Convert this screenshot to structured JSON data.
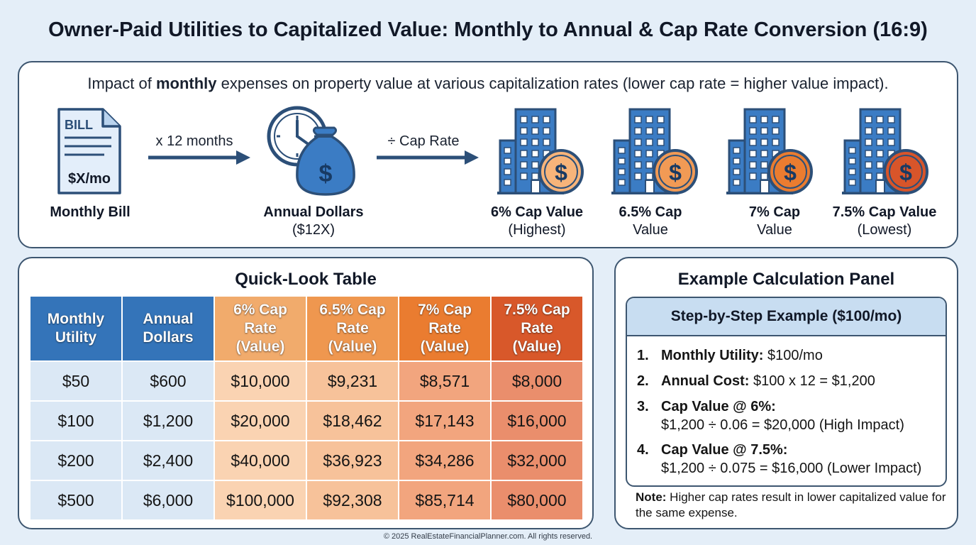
{
  "title": "Owner-Paid Utilities to Capitalized Value: Monthly to Annual & Cap Rate Conversion (16:9)",
  "flow": {
    "subtitle_pre": "Impact of ",
    "subtitle_bold": "monthly",
    "subtitle_post": " expenses on property value at various capitalization rates (lower cap rate = higher value impact).",
    "bill_header": "BILL",
    "bill_amount": "$X/mo",
    "arrow1": "x 12 months",
    "arrow2": "÷ Cap Rate",
    "steps": [
      {
        "line1": "Monthly Bill",
        "line2": ""
      },
      {
        "line1": "Annual Dollars",
        "line2": "($12X)"
      },
      {
        "line1": "6% Cap Value",
        "line2": "(Highest)"
      },
      {
        "line1": "6.5% Cap",
        "line2": "Value"
      },
      {
        "line1": "7% Cap",
        "line2": "Value"
      },
      {
        "line1": "7.5% Cap Value",
        "line2": "(Lowest)"
      }
    ],
    "building_coin_colors": [
      "#f7b47a",
      "#f19a55",
      "#ea7c30",
      "#d8552a"
    ],
    "primary_blue": "#3b7cc4"
  },
  "table": {
    "title": "Quick-Look Table",
    "headers": [
      [
        "Monthly",
        "Utility"
      ],
      [
        "Annual",
        "Dollars"
      ],
      [
        "6% Cap",
        "Rate",
        "(Value)"
      ],
      [
        "6.5% Cap",
        "Rate",
        "(Value)"
      ],
      [
        "7% Cap",
        "Rate",
        "(Value)"
      ],
      [
        "7.5% Cap",
        "Rate",
        "(Value)"
      ]
    ],
    "rows": [
      [
        "$50",
        "$600",
        "$10,000",
        "$9,231",
        "$8,571",
        "$8,000"
      ],
      [
        "$100",
        "$1,200",
        "$20,000",
        "$18,462",
        "$17,143",
        "$16,000"
      ],
      [
        "$200",
        "$2,400",
        "$40,000",
        "$36,923",
        "$34,286",
        "$32,000"
      ],
      [
        "$500",
        "$6,000",
        "$100,000",
        "$92,308",
        "$85,714",
        "$80,000"
      ]
    ]
  },
  "calc": {
    "title": "Example Calculation Panel",
    "box_title": "Step-by-Step Example ($100/mo)",
    "steps": [
      {
        "num": "1.",
        "label": "Monthly Utility:",
        "text": " $100/mo",
        "cont": ""
      },
      {
        "num": "2.",
        "label": "Annual Cost:",
        "text": " $100 x 12 = $1,200",
        "cont": ""
      },
      {
        "num": "3.",
        "label": "Cap Value @ 6%:",
        "text": "",
        "cont": "$1,200 ÷ 0.06 = $20,000 (High Impact)"
      },
      {
        "num": "4.",
        "label": "Cap Value @ 7.5%:",
        "text": "",
        "cont": "$1,200 ÷ 0.075 = $16,000 (Lower Impact)"
      }
    ],
    "note_label": "Note:",
    "note_text": " Higher cap rates result in lower capitalized value for the same expense."
  },
  "footer": "© 2025 RealEstateFinancialPlanner.com. All rights reserved."
}
